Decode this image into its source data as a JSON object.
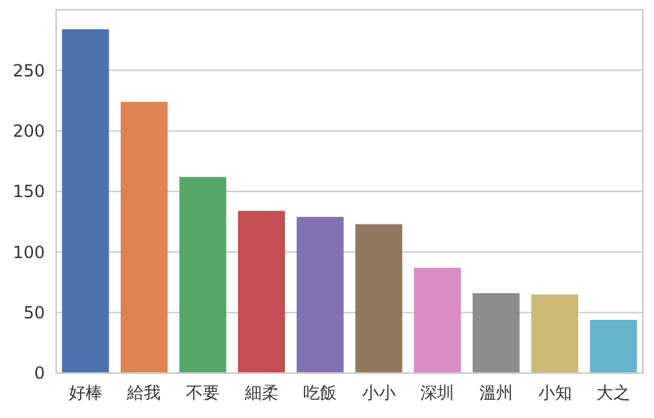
{
  "chart_data": {
    "type": "bar",
    "categories": [
      "好棒",
      "給我",
      "不要",
      "細柔",
      "吃飯",
      "小小",
      "深圳",
      "溫州",
      "小知",
      "大之"
    ],
    "values": [
      284,
      224,
      162,
      134,
      129,
      123,
      87,
      66,
      65,
      44
    ],
    "colors": [
      "#4c72b0",
      "#dd8452",
      "#55a868",
      "#c44e52",
      "#8172b3",
      "#937860",
      "#da8bc3",
      "#8c8c8c",
      "#ccb974",
      "#64b5cd"
    ],
    "ylim": [
      0,
      300
    ],
    "yticks": [
      0,
      50,
      100,
      150,
      200,
      250
    ],
    "grid": "y"
  }
}
